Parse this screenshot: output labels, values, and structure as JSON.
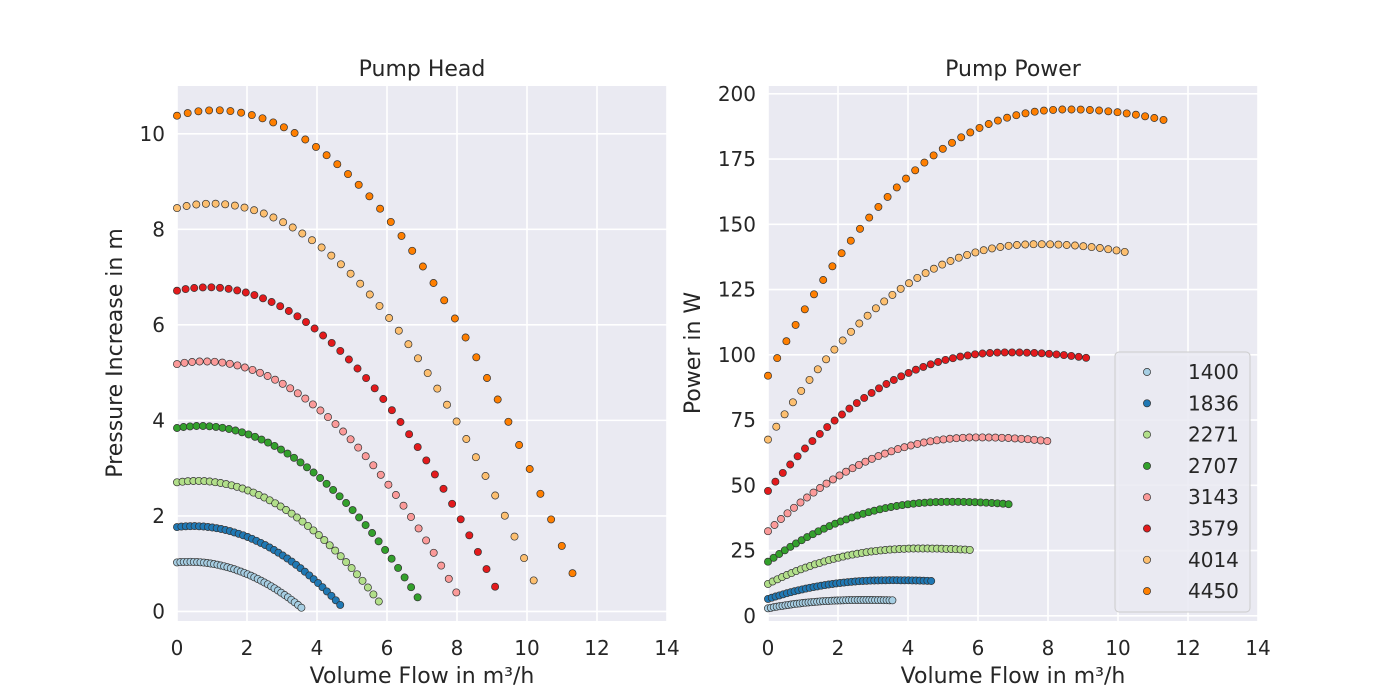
{
  "chart_data": [
    {
      "type": "scatter",
      "title": "Pump Head",
      "xlabel": "Volume Flow in m³/h",
      "ylabel": "Pressure Increase in m",
      "xlim": [
        0,
        14
      ],
      "ylim": [
        -0.2,
        11
      ],
      "xticks": [
        0,
        2,
        4,
        6,
        8,
        10,
        12,
        14
      ],
      "yticks": [
        0,
        2,
        4,
        6,
        8,
        10
      ],
      "grid": true,
      "shape": "head",
      "h0": 10.45,
      "qmax": 11.3,
      "hmax": 0.8,
      "npoints": 38
    },
    {
      "type": "scatter",
      "title": "Pump Power",
      "xlabel": "Volume Flow in m³/h",
      "ylabel": "Power in W",
      "xlim": [
        0,
        14
      ],
      "ylim": [
        -2,
        203
      ],
      "xticks": [
        0,
        2,
        4,
        6,
        8,
        10,
        12,
        14
      ],
      "yticks": [
        0,
        25,
        50,
        75,
        100,
        125,
        150,
        175,
        200
      ],
      "grid": true,
      "shape": "power",
      "p_start": 92,
      "p_peak": 194,
      "q_peak": 8.6,
      "p_end": 190,
      "qmax": 11.3,
      "npoints": 44,
      "legend_position": "lower-right"
    }
  ],
  "series": [
    {
      "name": "1400",
      "color": "#a6cee3"
    },
    {
      "name": "1836",
      "color": "#1f78b4"
    },
    {
      "name": "2271",
      "color": "#b2df8a"
    },
    {
      "name": "2707",
      "color": "#33a02c"
    },
    {
      "name": "3143",
      "color": "#fb9a99"
    },
    {
      "name": "3579",
      "color": "#e31a1c"
    },
    {
      "name": "4014",
      "color": "#fdbf6f"
    },
    {
      "name": "4450",
      "color": "#ff7f00"
    }
  ]
}
